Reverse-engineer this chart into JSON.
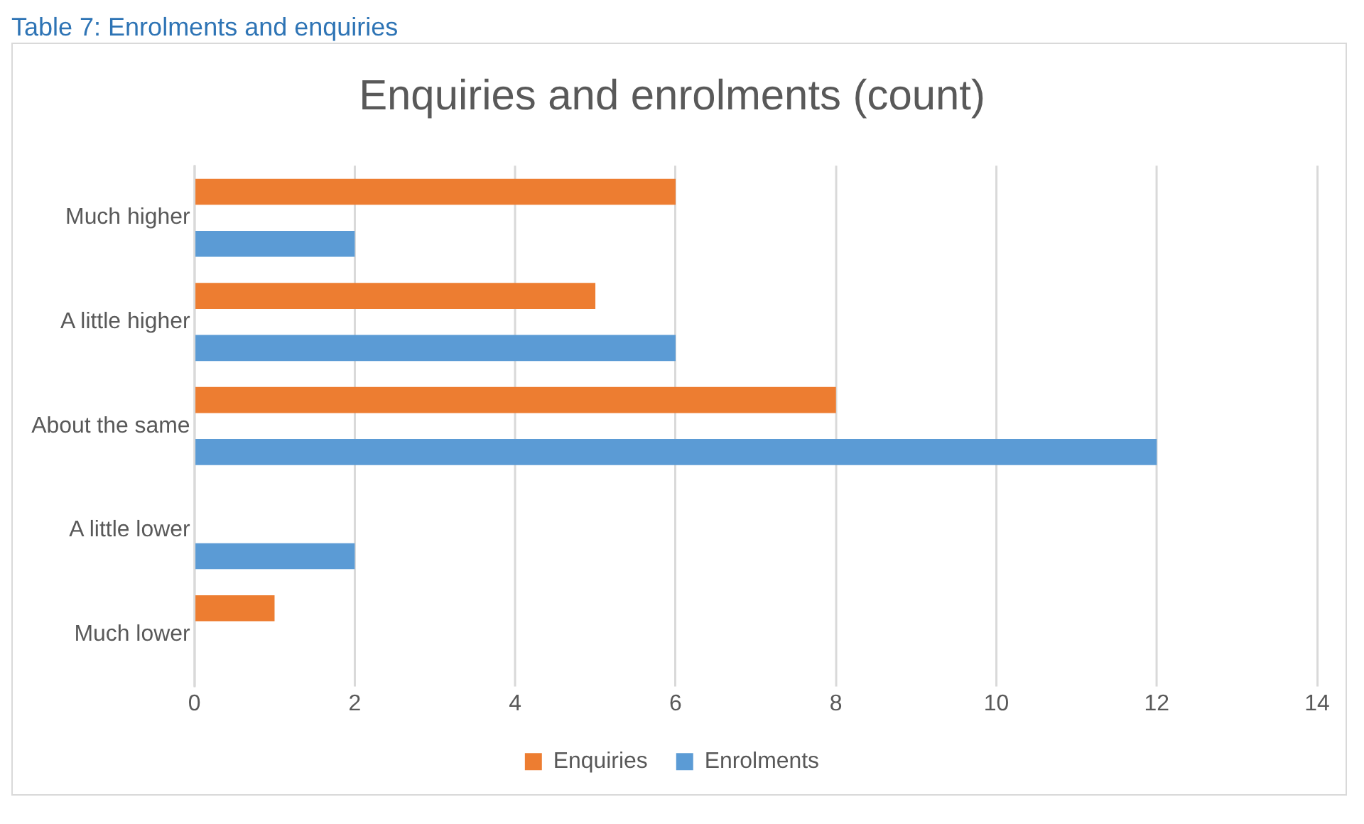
{
  "chart_data": {
    "type": "bar",
    "orientation": "horizontal",
    "title": "Enquiries and enrolments (count)",
    "annotations": [
      "Table 7: Enrolments and enquiries"
    ],
    "categories": [
      "Much higher",
      "A little higher",
      "About the same",
      "A little lower",
      "Much lower"
    ],
    "series": [
      {
        "name": "Enquiries",
        "color": "#ed7d31",
        "values": [
          6,
          5,
          8,
          0,
          1
        ]
      },
      {
        "name": "Enrolments",
        "color": "#5b9bd5",
        "values": [
          2,
          6,
          12,
          2,
          0
        ]
      }
    ],
    "xlim": [
      0,
      14
    ],
    "xticks": [
      0,
      2,
      4,
      6,
      8,
      10,
      12,
      14
    ],
    "grid": "x",
    "legend": "bottom"
  }
}
